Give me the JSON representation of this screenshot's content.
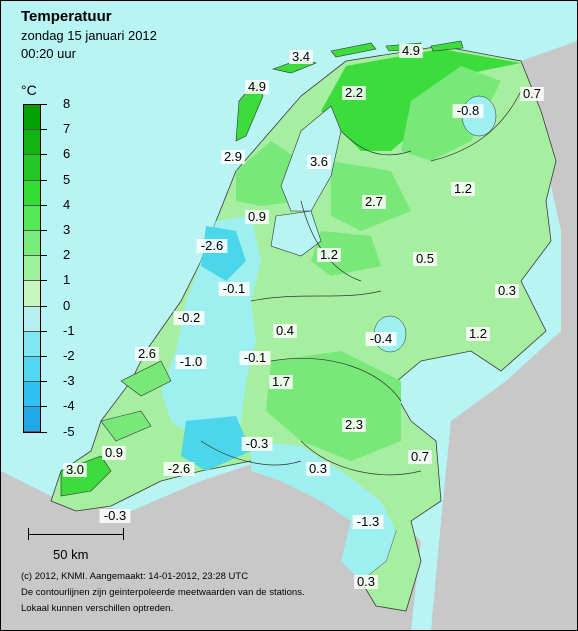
{
  "header": {
    "title": "Temperatuur",
    "date": "zondag 15 januari 2012",
    "time": "00:20 uur"
  },
  "legend": {
    "unit": "°C",
    "ticks": [
      "8",
      "7",
      "6",
      "5",
      "4",
      "3",
      "2",
      "1",
      "0",
      "-1",
      "-2",
      "-3",
      "-4",
      "-5"
    ],
    "colors": [
      "#00a000",
      "#12b512",
      "#22c922",
      "#33dd33",
      "#55e855",
      "#7aee7a",
      "#9ef29e",
      "#c8f5c0",
      "#b8f0f0",
      "#80e8f0",
      "#50d8f0",
      "#2ec0ee",
      "#20a8e8"
    ]
  },
  "scale_bar": {
    "label": "50 km"
  },
  "footer": {
    "line1": "(c) 2012, KNMI. Aangemaakt: 14-01-2012, 23:28 UTC",
    "line2": "De contourlijnen zijn geinterpoleerde meetwaarden van de stations.",
    "line3": "Lokaal kunnen verschillen optreden."
  },
  "station_values": [
    "3.4",
    "4.9",
    "4.9",
    "2.2",
    "-0.8",
    "0.7",
    "2.9",
    "3.6",
    "2.7",
    "1.2",
    "0.9",
    "-2.6",
    "1.2",
    "0.5",
    "-0.1",
    "0.3",
    "-0.2",
    "0.4",
    "-0.4",
    "1.2",
    "2.6",
    "-1.0",
    "-0.1",
    "1.7",
    "2.3",
    "0.9",
    "-0.3",
    "0.7",
    "3.0",
    "-2.6",
    "0.3",
    "-0.3",
    "-1.3",
    "0.3"
  ],
  "colors": {
    "sea": "#b8f4f4",
    "land_outside": "#c8c8c8",
    "warm_green": "#3bdc3b",
    "mid_green": "#78e878",
    "light_green": "#a6eea0",
    "cyan": "#9ef0f0",
    "cold_cyan": "#4cd6ea"
  }
}
